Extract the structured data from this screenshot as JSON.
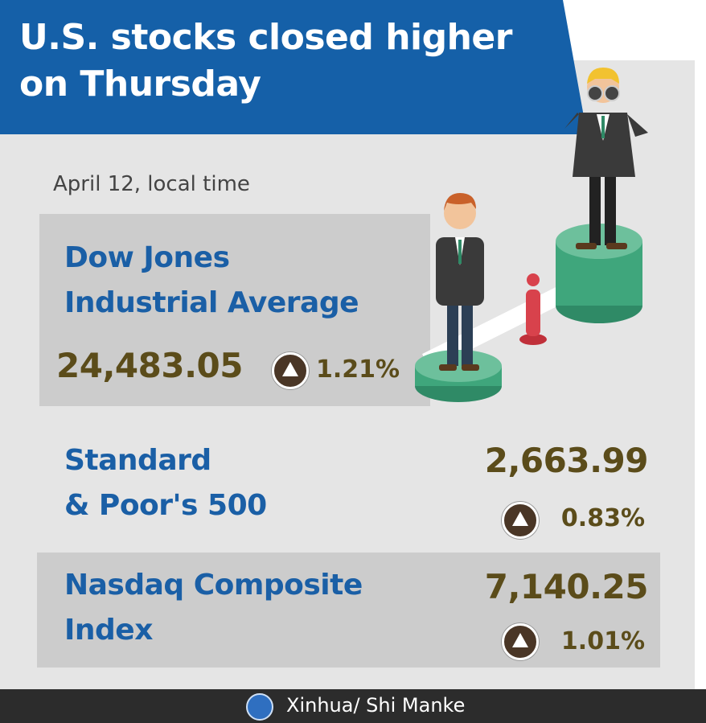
{
  "header": {
    "title_line1": "U.S. stocks closed higher",
    "title_line2": "on Thursday"
  },
  "date": "April 12, local time",
  "indices": [
    {
      "name_line1": "Dow Jones",
      "name_line2": "Industrial Average",
      "value": "24,483.05",
      "change": "1.21%",
      "direction": "up"
    },
    {
      "name_line1": "Standard",
      "name_line2": "& Poor's 500",
      "value": "2,663.99",
      "change": "0.83%",
      "direction": "up"
    },
    {
      "name_line1": "Nasdaq Composite",
      "name_line2": "Index",
      "value": "7,140.25",
      "change": "1.01%",
      "direction": "up"
    }
  ],
  "colors": {
    "header": "#1560a8",
    "label": "#1a5fa6",
    "value": "#5b4c1a",
    "up_badge": "#4a3626",
    "footer": "#2c2c2c"
  },
  "footer": {
    "credit": "Xinhua/ Shi Manke",
    "logo": "xinhua-logo"
  }
}
